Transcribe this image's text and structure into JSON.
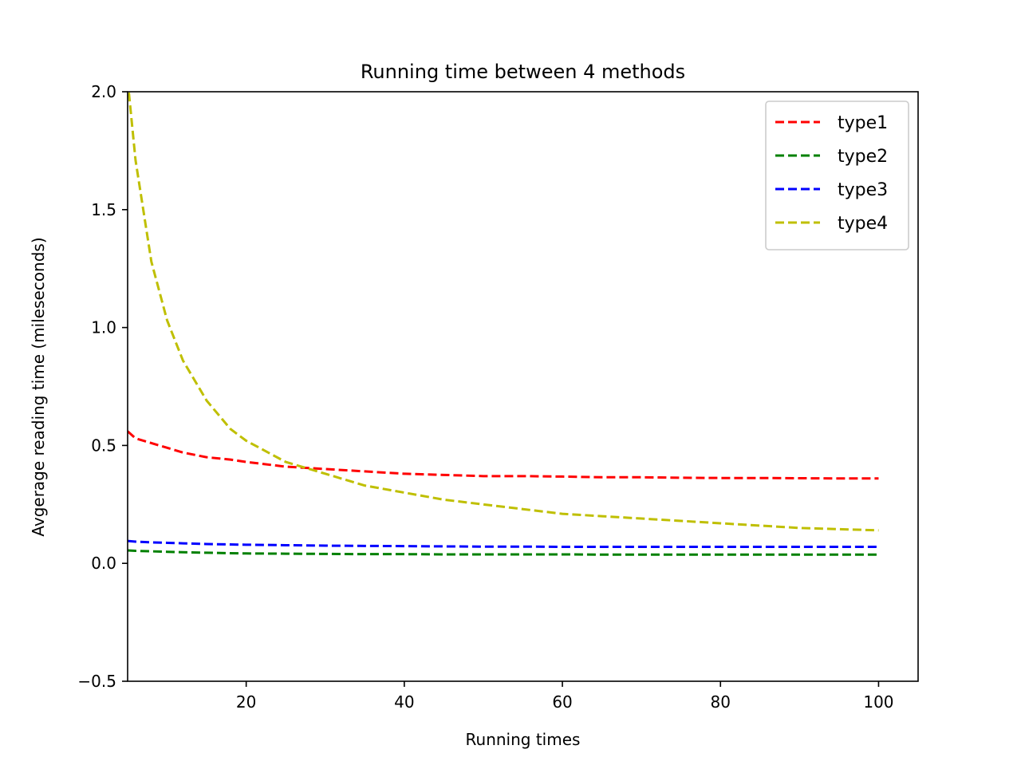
{
  "chart_data": {
    "type": "line",
    "title": "Running time between 4 methods",
    "xlabel": "Running times",
    "ylabel": "Avgerage reading time (mileseconds)",
    "xlim": [
      5,
      105
    ],
    "ylim": [
      -0.5,
      2.0
    ],
    "xticks": [
      20,
      40,
      60,
      80,
      100
    ],
    "xtick_labels": [
      "20",
      "40",
      "60",
      "80",
      "100"
    ],
    "yticks": [
      -0.5,
      0.0,
      0.5,
      1.0,
      1.5,
      2.0
    ],
    "ytick_labels": [
      "−0.5",
      "0.0",
      "0.5",
      "1.0",
      "1.5",
      "2.0"
    ],
    "grid": false,
    "legend_position": "top-right",
    "line_style": "dashed",
    "x": [
      5,
      6,
      8,
      10,
      12,
      15,
      18,
      20,
      25,
      30,
      35,
      40,
      45,
      50,
      55,
      60,
      65,
      70,
      75,
      80,
      85,
      90,
      95,
      100
    ],
    "series": [
      {
        "name": "type1",
        "color": "#ff0000",
        "values": [
          0.56,
          0.53,
          0.51,
          0.49,
          0.47,
          0.45,
          0.44,
          0.43,
          0.41,
          0.4,
          0.39,
          0.38,
          0.375,
          0.37,
          0.37,
          0.368,
          0.365,
          0.365,
          0.363,
          0.362,
          0.362,
          0.361,
          0.36,
          0.36
        ]
      },
      {
        "name": "type2",
        "color": "#008000",
        "values": [
          0.055,
          0.053,
          0.051,
          0.049,
          0.047,
          0.045,
          0.043,
          0.042,
          0.041,
          0.04,
          0.039,
          0.039,
          0.038,
          0.038,
          0.038,
          0.038,
          0.037,
          0.037,
          0.037,
          0.037,
          0.037,
          0.037,
          0.037,
          0.037
        ]
      },
      {
        "name": "type3",
        "color": "#0000ff",
        "values": [
          0.095,
          0.092,
          0.089,
          0.087,
          0.085,
          0.082,
          0.08,
          0.079,
          0.077,
          0.075,
          0.074,
          0.073,
          0.072,
          0.071,
          0.071,
          0.07,
          0.07,
          0.07,
          0.07,
          0.07,
          0.07,
          0.07,
          0.07,
          0.07
        ]
      },
      {
        "name": "type4",
        "color": "#bfbf00",
        "values": [
          2.05,
          1.71,
          1.28,
          1.03,
          0.86,
          0.69,
          0.57,
          0.52,
          0.43,
          0.38,
          0.33,
          0.3,
          0.27,
          0.25,
          0.23,
          0.21,
          0.2,
          0.19,
          0.18,
          0.17,
          0.16,
          0.15,
          0.145,
          0.14
        ]
      }
    ]
  }
}
